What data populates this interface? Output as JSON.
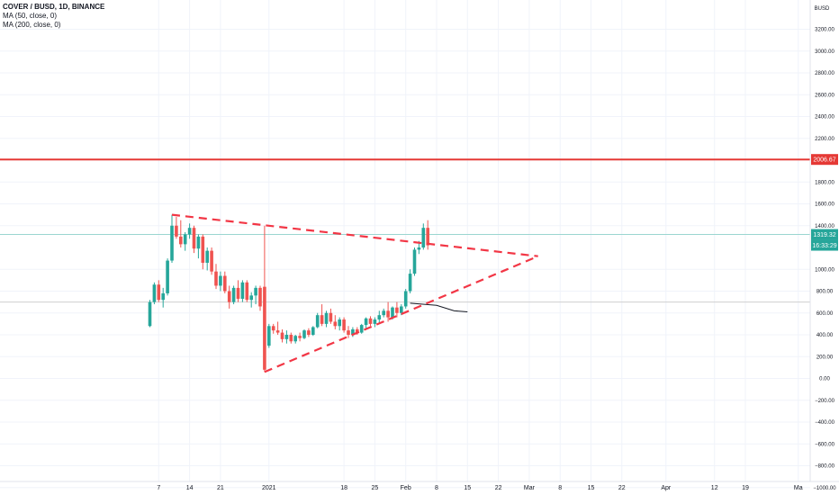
{
  "legend": {
    "symbol": "COVER / BUSD, 1D, BINANCE",
    "ma1": "MA (50, close, 0)",
    "ma2": "MA (200, close, 0)"
  },
  "currency_label": "BUSD",
  "colors": {
    "up": "#26a69a",
    "down": "#ef5350",
    "level": "#e53935",
    "trend": "#f23645",
    "ma": "#131722",
    "price_line": "#9bd6d0",
    "gray_line": "#cfcfcf"
  },
  "chart_data": {
    "type": "candlestick",
    "y_ticks": [
      "3200.00",
      "3000.00",
      "2800.00",
      "2600.00",
      "2400.00",
      "2200.00",
      "1800.00",
      "1600.00",
      "1400.00",
      "1000.00",
      "800.00",
      "600.00",
      "400.00",
      "200.00",
      "0.00",
      "−200.00",
      "−400.00",
      "−600.00",
      "−800.00",
      "−1000.00"
    ],
    "y_tick_values": [
      3200,
      3000,
      2800,
      2600,
      2400,
      2200,
      1800,
      1600,
      1400,
      1000,
      800,
      600,
      400,
      200,
      0,
      -200,
      -400,
      -600,
      -800,
      -1000
    ],
    "x_ticks": [
      {
        "label": "7",
        "day": 7
      },
      {
        "label": "14",
        "day": 14
      },
      {
        "label": "21",
        "day": 21
      },
      {
        "label": "2021",
        "day": 32
      },
      {
        "label": "18",
        "day": 49
      },
      {
        "label": "25",
        "day": 56
      },
      {
        "label": "Feb",
        "day": 63
      },
      {
        "label": "8",
        "day": 70
      },
      {
        "label": "15",
        "day": 77
      },
      {
        "label": "22",
        "day": 84
      },
      {
        "label": "Mar",
        "day": 91
      },
      {
        "label": "8",
        "day": 98
      },
      {
        "label": "15",
        "day": 105
      },
      {
        "label": "22",
        "day": 112
      },
      {
        "label": "Apr",
        "day": 122
      },
      {
        "label": "12",
        "day": 133
      },
      {
        "label": "19",
        "day": 140
      },
      {
        "label": "Ma",
        "day": 152
      }
    ],
    "horizontal_level": {
      "value": 2006.67,
      "label": "2006.67"
    },
    "last_price": {
      "value": 1319.32,
      "label": "1319.32",
      "countdown": "16:33:29"
    },
    "gray_level": 700,
    "triangle": [
      {
        "from": {
          "day": 10,
          "price": 1500
        },
        "to": {
          "day": 93,
          "price": 1120
        }
      },
      {
        "from": {
          "day": 31,
          "price": 60
        },
        "to": {
          "day": 93,
          "price": 1120
        }
      }
    ],
    "ma_segment": [
      {
        "day": 64,
        "price": 690
      },
      {
        "day": 70,
        "price": 670
      },
      {
        "day": 74,
        "price": 620
      },
      {
        "day": 77,
        "price": 610
      }
    ],
    "candles": [
      {
        "day": 5,
        "o": 480,
        "h": 720,
        "l": 470,
        "c": 700
      },
      {
        "day": 6,
        "o": 700,
        "h": 880,
        "l": 680,
        "c": 860
      },
      {
        "day": 7,
        "o": 860,
        "h": 900,
        "l": 700,
        "c": 720
      },
      {
        "day": 8,
        "o": 720,
        "h": 830,
        "l": 650,
        "c": 780
      },
      {
        "day": 9,
        "o": 780,
        "h": 1100,
        "l": 760,
        "c": 1080
      },
      {
        "day": 10,
        "o": 1080,
        "h": 1500,
        "l": 1060,
        "c": 1400
      },
      {
        "day": 11,
        "o": 1400,
        "h": 1480,
        "l": 1280,
        "c": 1300
      },
      {
        "day": 12,
        "o": 1300,
        "h": 1450,
        "l": 1200,
        "c": 1230
      },
      {
        "day": 13,
        "o": 1230,
        "h": 1340,
        "l": 1170,
        "c": 1320
      },
      {
        "day": 14,
        "o": 1320,
        "h": 1420,
        "l": 1280,
        "c": 1380
      },
      {
        "day": 15,
        "o": 1380,
        "h": 1400,
        "l": 1150,
        "c": 1190
      },
      {
        "day": 16,
        "o": 1190,
        "h": 1320,
        "l": 1100,
        "c": 1300
      },
      {
        "day": 17,
        "o": 1300,
        "h": 1320,
        "l": 1000,
        "c": 1060
      },
      {
        "day": 18,
        "o": 1060,
        "h": 1200,
        "l": 990,
        "c": 1170
      },
      {
        "day": 19,
        "o": 1170,
        "h": 1200,
        "l": 950,
        "c": 980
      },
      {
        "day": 20,
        "o": 980,
        "h": 1050,
        "l": 820,
        "c": 850
      },
      {
        "day": 21,
        "o": 850,
        "h": 980,
        "l": 800,
        "c": 940
      },
      {
        "day": 22,
        "o": 940,
        "h": 980,
        "l": 780,
        "c": 800
      },
      {
        "day": 23,
        "o": 800,
        "h": 850,
        "l": 640,
        "c": 700
      },
      {
        "day": 24,
        "o": 700,
        "h": 850,
        "l": 680,
        "c": 830
      },
      {
        "day": 25,
        "o": 830,
        "h": 900,
        "l": 700,
        "c": 730
      },
      {
        "day": 26,
        "o": 730,
        "h": 900,
        "l": 700,
        "c": 880
      },
      {
        "day": 27,
        "o": 880,
        "h": 900,
        "l": 700,
        "c": 720
      },
      {
        "day": 28,
        "o": 720,
        "h": 790,
        "l": 650,
        "c": 760
      },
      {
        "day": 29,
        "o": 760,
        "h": 850,
        "l": 680,
        "c": 830
      },
      {
        "day": 30,
        "o": 830,
        "h": 850,
        "l": 620,
        "c": 660
      },
      {
        "day": 31,
        "o": 840,
        "h": 1400,
        "l": 60,
        "c": 80
      },
      {
        "day": 32,
        "o": 300,
        "h": 500,
        "l": 280,
        "c": 480
      },
      {
        "day": 33,
        "o": 480,
        "h": 500,
        "l": 410,
        "c": 440
      },
      {
        "day": 34,
        "o": 440,
        "h": 520,
        "l": 400,
        "c": 420
      },
      {
        "day": 35,
        "o": 420,
        "h": 450,
        "l": 330,
        "c": 360
      },
      {
        "day": 36,
        "o": 360,
        "h": 440,
        "l": 320,
        "c": 400
      },
      {
        "day": 37,
        "o": 400,
        "h": 420,
        "l": 320,
        "c": 340
      },
      {
        "day": 38,
        "o": 340,
        "h": 400,
        "l": 320,
        "c": 390
      },
      {
        "day": 39,
        "o": 390,
        "h": 420,
        "l": 340,
        "c": 370
      },
      {
        "day": 40,
        "o": 370,
        "h": 450,
        "l": 360,
        "c": 440
      },
      {
        "day": 41,
        "o": 440,
        "h": 460,
        "l": 380,
        "c": 400
      },
      {
        "day": 42,
        "o": 400,
        "h": 480,
        "l": 390,
        "c": 470
      },
      {
        "day": 43,
        "o": 470,
        "h": 600,
        "l": 460,
        "c": 580
      },
      {
        "day": 44,
        "o": 580,
        "h": 680,
        "l": 480,
        "c": 500
      },
      {
        "day": 45,
        "o": 500,
        "h": 620,
        "l": 470,
        "c": 600
      },
      {
        "day": 46,
        "o": 600,
        "h": 640,
        "l": 500,
        "c": 520
      },
      {
        "day": 47,
        "o": 520,
        "h": 580,
        "l": 450,
        "c": 480
      },
      {
        "day": 48,
        "o": 480,
        "h": 560,
        "l": 440,
        "c": 540
      },
      {
        "day": 49,
        "o": 540,
        "h": 560,
        "l": 420,
        "c": 440
      },
      {
        "day": 50,
        "o": 440,
        "h": 480,
        "l": 370,
        "c": 400
      },
      {
        "day": 51,
        "o": 400,
        "h": 470,
        "l": 380,
        "c": 450
      },
      {
        "day": 52,
        "o": 450,
        "h": 470,
        "l": 400,
        "c": 420
      },
      {
        "day": 53,
        "o": 420,
        "h": 500,
        "l": 410,
        "c": 490
      },
      {
        "day": 54,
        "o": 490,
        "h": 560,
        "l": 460,
        "c": 550
      },
      {
        "day": 55,
        "o": 550,
        "h": 570,
        "l": 480,
        "c": 500
      },
      {
        "day": 56,
        "o": 500,
        "h": 560,
        "l": 470,
        "c": 540
      },
      {
        "day": 57,
        "o": 540,
        "h": 620,
        "l": 510,
        "c": 580
      },
      {
        "day": 58,
        "o": 580,
        "h": 640,
        "l": 560,
        "c": 620
      },
      {
        "day": 59,
        "o": 620,
        "h": 700,
        "l": 520,
        "c": 560
      },
      {
        "day": 60,
        "o": 560,
        "h": 660,
        "l": 540,
        "c": 650
      },
      {
        "day": 61,
        "o": 650,
        "h": 700,
        "l": 560,
        "c": 600
      },
      {
        "day": 62,
        "o": 600,
        "h": 680,
        "l": 580,
        "c": 660
      },
      {
        "day": 63,
        "o": 660,
        "h": 820,
        "l": 640,
        "c": 800
      },
      {
        "day": 64,
        "o": 800,
        "h": 1000,
        "l": 780,
        "c": 960
      },
      {
        "day": 65,
        "o": 960,
        "h": 1200,
        "l": 940,
        "c": 1180
      },
      {
        "day": 66,
        "o": 1180,
        "h": 1260,
        "l": 1140,
        "c": 1200
      },
      {
        "day": 67,
        "o": 1200,
        "h": 1420,
        "l": 1180,
        "c": 1380
      },
      {
        "day": 68,
        "o": 1380,
        "h": 1450,
        "l": 1180,
        "c": 1220
      }
    ]
  }
}
